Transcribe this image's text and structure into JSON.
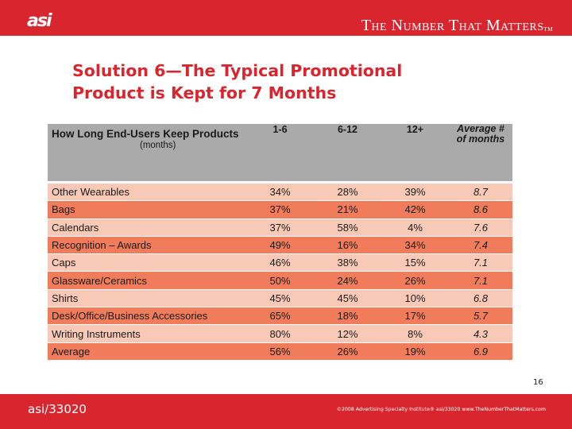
{
  "header": {
    "logo_text": "asi",
    "tagline": "The Number That Matters",
    "tagline_tm": "TM"
  },
  "slide": {
    "title_line1": "Solution 6—The Typical Promotional",
    "title_line2": "Product is Kept for 7 Months"
  },
  "table": {
    "title": "How Long End-Users Keep Products",
    "subtitle": "(months)",
    "columns": [
      "1-6",
      "6-12",
      "12+"
    ],
    "avg_header_line1": "Average #",
    "avg_header_line2": "of months",
    "rows": [
      {
        "label": "Other Wearables",
        "c1": "34%",
        "c2": "28%",
        "c3": "39%",
        "avg": "8.7"
      },
      {
        "label": "Bags",
        "c1": "37%",
        "c2": "21%",
        "c3": "42%",
        "avg": "8.6"
      },
      {
        "label": "Calendars",
        "c1": "37%",
        "c2": "58%",
        "c3": "4%",
        "avg": "7.6"
      },
      {
        "label": "Recognition – Awards",
        "c1": "49%",
        "c2": "16%",
        "c3": "34%",
        "avg": "7.4"
      },
      {
        "label": "Caps",
        "c1": "46%",
        "c2": "38%",
        "c3": "15%",
        "avg": "7.1"
      },
      {
        "label": "Glassware/Ceramics",
        "c1": "50%",
        "c2": "24%",
        "c3": "26%",
        "avg": "7.1"
      },
      {
        "label": "Shirts",
        "c1": "45%",
        "c2": "45%",
        "c3": "10%",
        "avg": "6.8"
      },
      {
        "label": "Desk/Office/Business Accessories",
        "c1": "65%",
        "c2": "18%",
        "c3": "17%",
        "avg": "5.7"
      },
      {
        "label": "Writing Instruments",
        "c1": "80%",
        "c2": "12%",
        "c3": "8%",
        "avg": "4.3"
      },
      {
        "label": "Average",
        "c1": "56%",
        "c2": "26%",
        "c3": "19%",
        "avg": "6.9"
      }
    ]
  },
  "page_number": "16",
  "footer": {
    "left": "asi/33020",
    "right": "©2008 Advertising Specialty Institute® asi/33020   www.TheNumberThatMatters.com"
  },
  "colors": {
    "brand_red": "#d9262e",
    "row_light": "#f9c9b7",
    "row_dark": "#f07c5b",
    "header_gray": "#aaaaab"
  }
}
